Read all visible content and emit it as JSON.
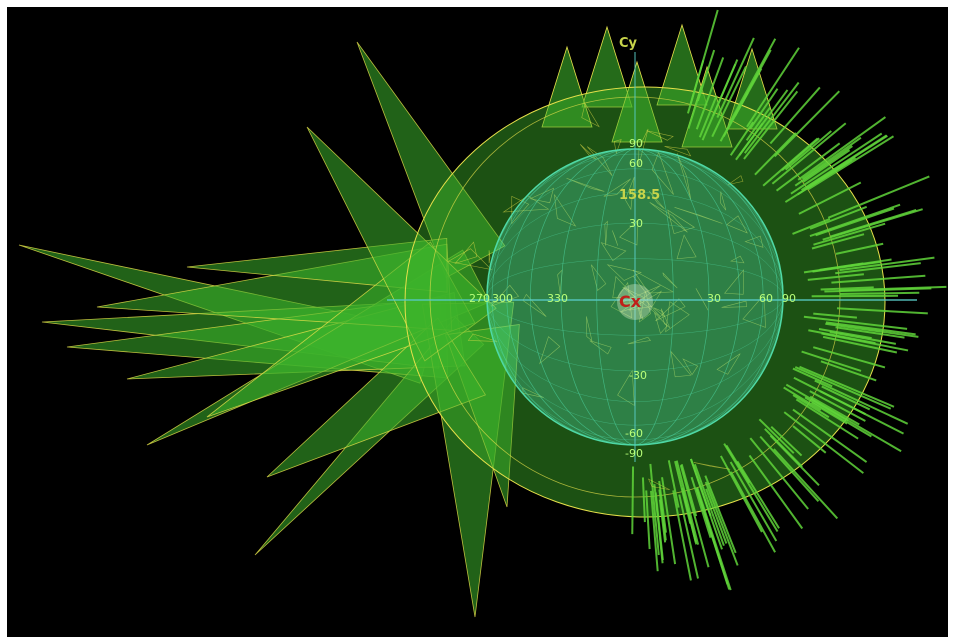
{
  "scene": {
    "background_color": "#000000",
    "fill_color": "#3db32b",
    "edge_color": "#e6e04a",
    "globe_color": "#4fd9a6",
    "spike_color": "#5fd43a"
  },
  "labels": {
    "axis_y": "Cy",
    "axis_x": "Cx",
    "value_top": "158.5",
    "lon_labels": [
      "270",
      "300",
      "330",
      "30",
      "60",
      "90"
    ],
    "lat_labels_top": [
      "90",
      "60",
      "30"
    ],
    "lat_labels_bottom": [
      "-30",
      "-60",
      "-90"
    ]
  }
}
